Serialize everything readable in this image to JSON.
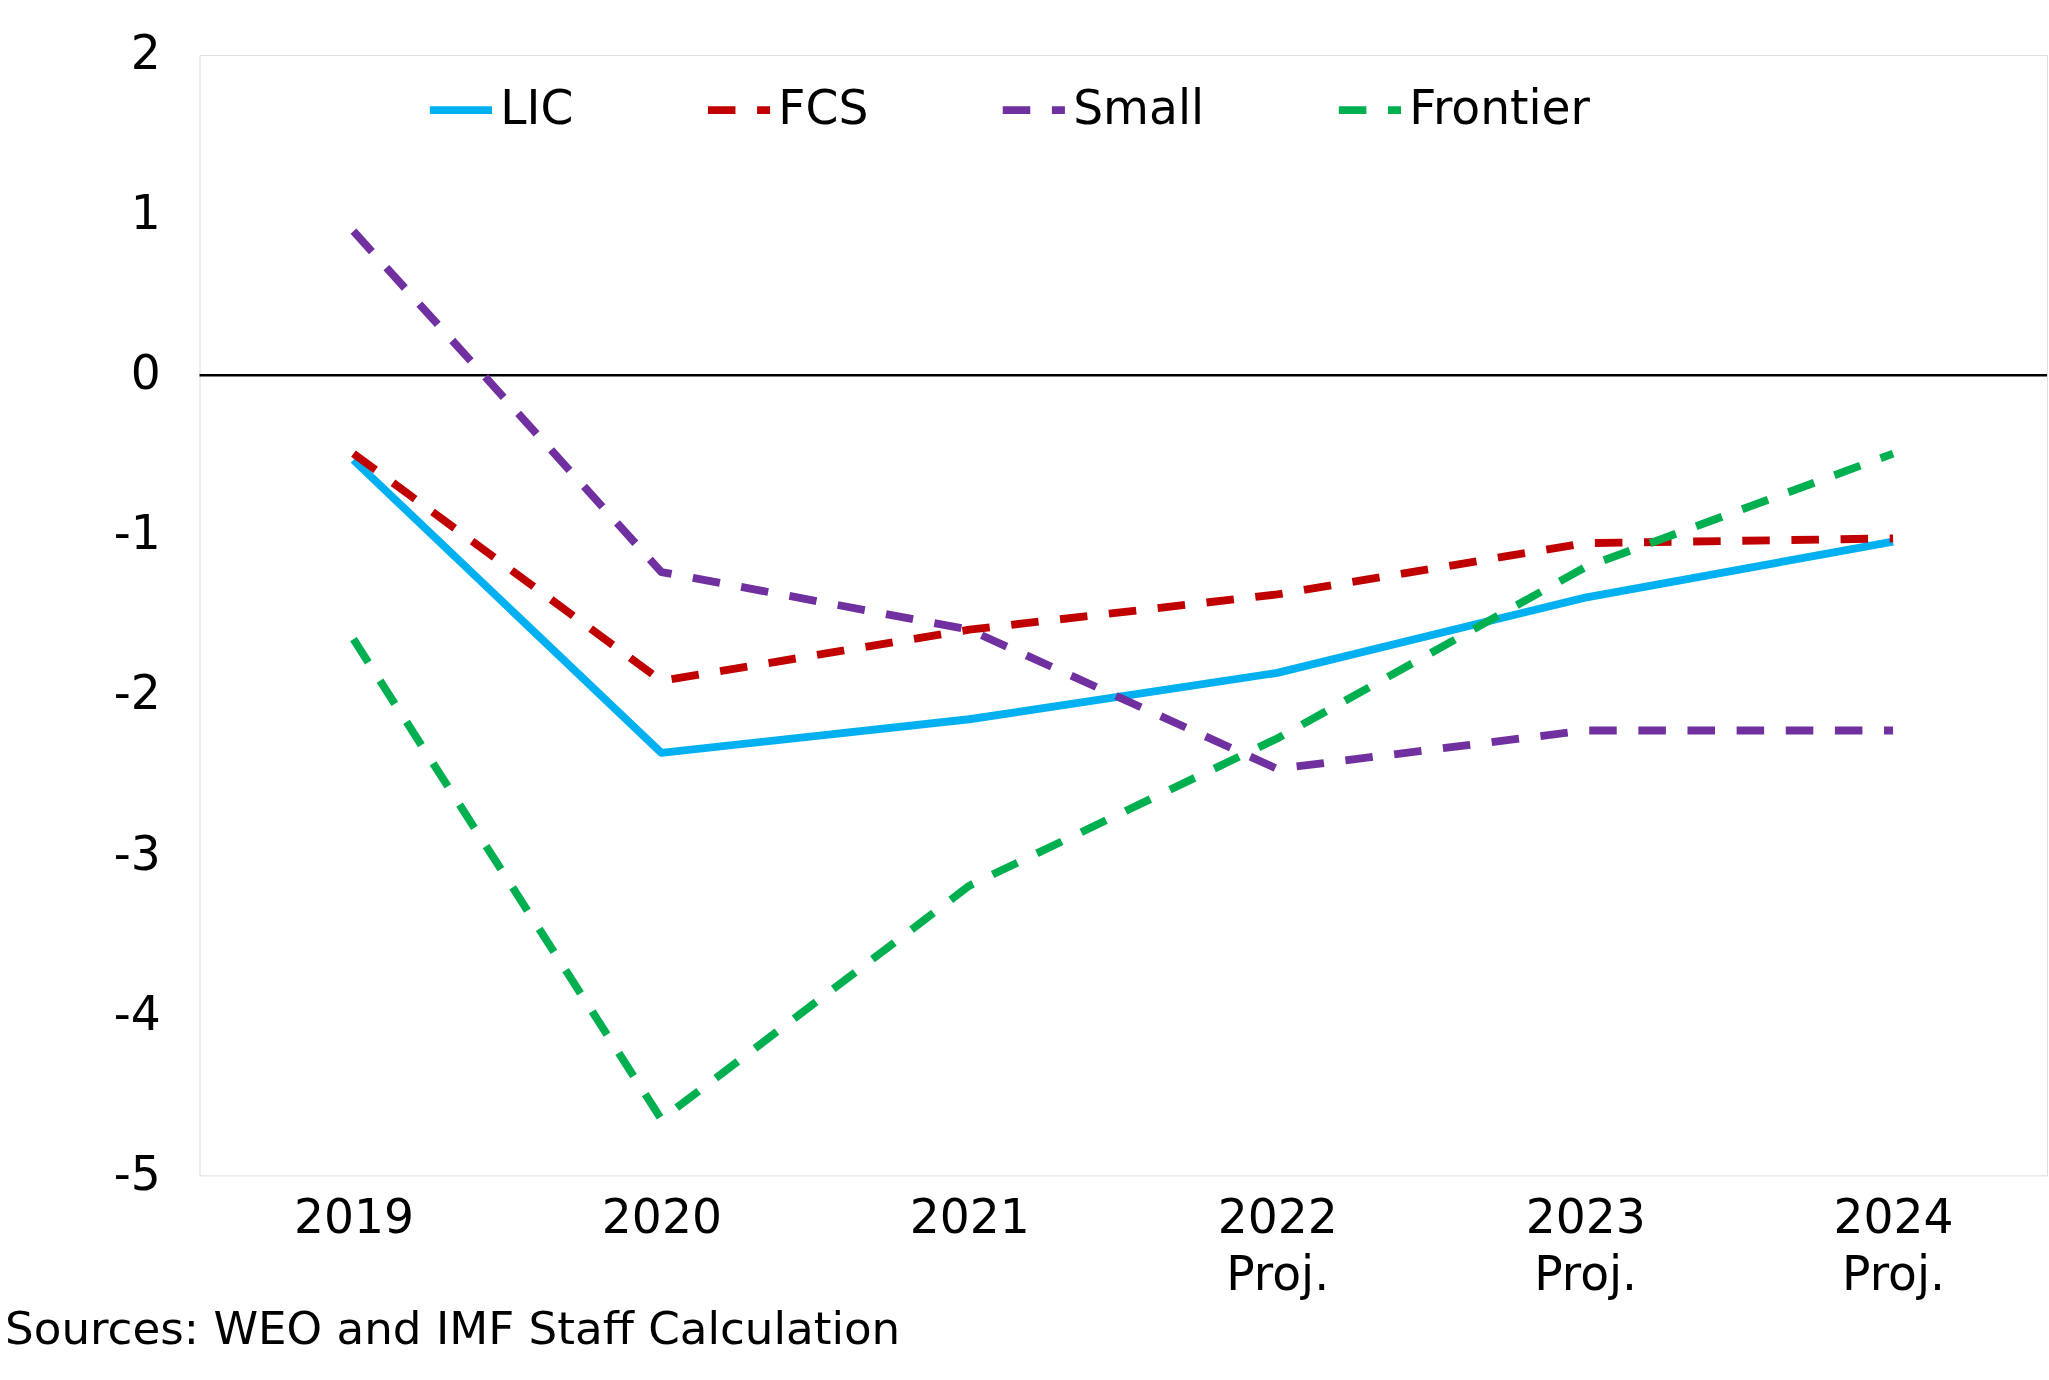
{
  "chart_data": {
    "type": "line",
    "categories": [
      "2019",
      "2020",
      "2021",
      "2022\nProj.",
      "2023\nProj.",
      "2024\nProj."
    ],
    "series": [
      {
        "name": "LIC",
        "color": "#00b0f0",
        "line_style": "solid",
        "values": [
          -0.53,
          -2.36,
          -2.15,
          -1.86,
          -1.39,
          -1.04
        ]
      },
      {
        "name": "FCS",
        "color": "#c00000",
        "line_style": "dashed",
        "values": [
          -0.49,
          -1.91,
          -1.59,
          -1.37,
          -1.05,
          -1.02
        ]
      },
      {
        "name": "Small",
        "color": "#7030a0",
        "line_style": "dashed",
        "values": [
          0.9,
          -1.23,
          -1.59,
          -2.46,
          -2.22,
          -2.22
        ]
      },
      {
        "name": "Frontier",
        "color": "#00b050",
        "line_style": "dashed",
        "values": [
          -1.65,
          -4.65,
          -3.19,
          -2.27,
          -1.2,
          -0.49
        ]
      }
    ],
    "ylim": [
      -5,
      2
    ],
    "yticks": [
      -5,
      -4,
      -3,
      -2,
      -1,
      0,
      1,
      2
    ],
    "ref_lines": [
      {
        "axis": "y",
        "value": 0
      }
    ],
    "legend": "top",
    "grid": false,
    "marker": "none",
    "annotations": [
      "Sources: WEO and IMF Staff Calculation"
    ]
  }
}
